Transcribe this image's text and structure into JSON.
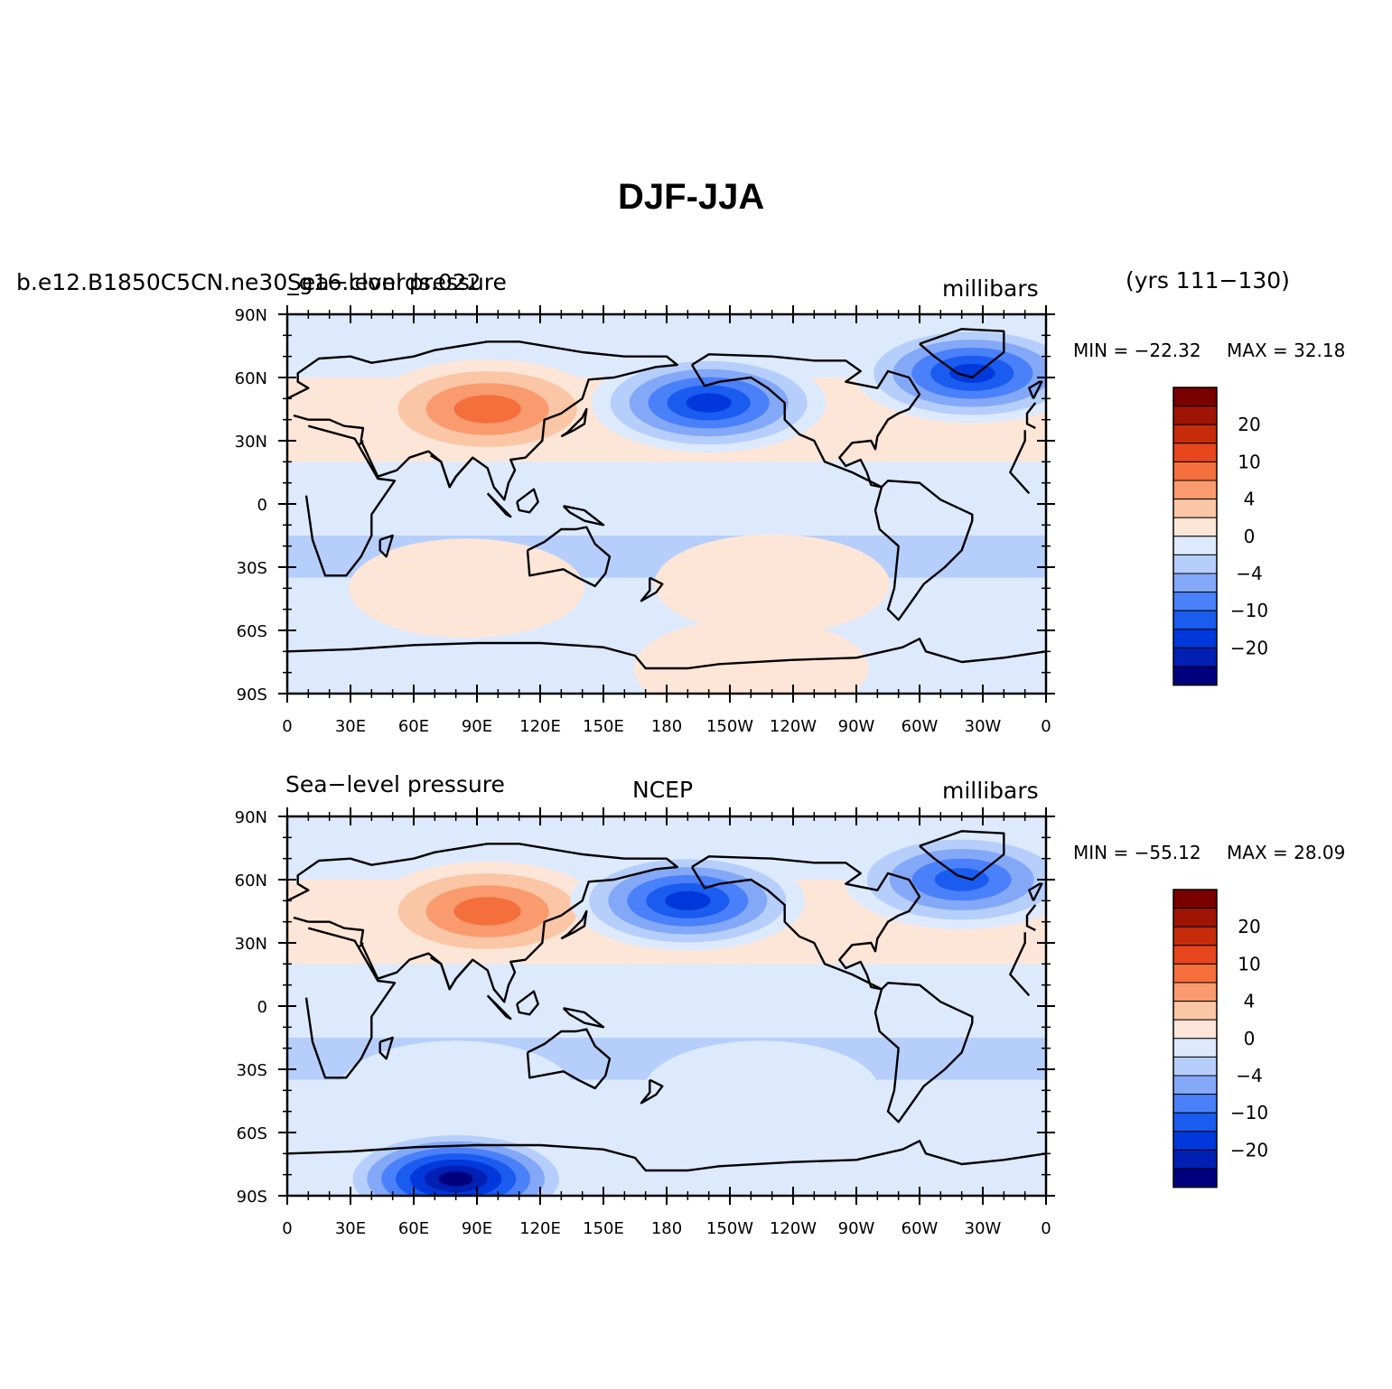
{
  "figure": {
    "title": "DJF-JJA",
    "years_label": "(yrs 111−130)"
  },
  "panels": [
    {
      "case_label": "b.e12.B1850C5CN.ne30_g16.clonrds.022",
      "variable_label": "Sea−level pressure",
      "center_label": "",
      "units_label": "millibars",
      "min_label": "MIN = −22.32",
      "max_label": "MAX =  32.18",
      "regions": [
        {
          "name": "siberian-high",
          "lon": 95,
          "lat": 45,
          "level": 11
        },
        {
          "name": "aleutian-low",
          "lon": 200,
          "lat": 48,
          "level": 2
        },
        {
          "name": "icelandic-low",
          "lon": 325,
          "lat": 62,
          "level": 2
        },
        {
          "name": "southern-indian-high",
          "lon": 85,
          "lat": -40,
          "level": 8
        },
        {
          "name": "south-pacific-high",
          "lon": 230,
          "lat": -38,
          "level": 8
        },
        {
          "name": "antarctic-coast",
          "lon": 220,
          "lat": -78,
          "level": 8
        }
      ]
    },
    {
      "case_label": "",
      "variable_label": "Sea−level pressure",
      "center_label": "NCEP",
      "units_label": "millibars",
      "min_label": "MIN = −55.12",
      "max_label": "MAX =  28.09",
      "regions": [
        {
          "name": "siberian-high",
          "lon": 95,
          "lat": 45,
          "level": 11
        },
        {
          "name": "aleutian-low",
          "lon": 190,
          "lat": 50,
          "level": 2
        },
        {
          "name": "icelandic-low",
          "lon": 320,
          "lat": 60,
          "level": 3
        },
        {
          "name": "southern-indian-high",
          "lon": 80,
          "lat": -40,
          "level": 7
        },
        {
          "name": "south-pacific-high",
          "lon": 225,
          "lat": -40,
          "level": 7
        },
        {
          "name": "antarctic-interior",
          "lon": 80,
          "lat": -82,
          "level": 0
        }
      ]
    }
  ],
  "colorbar": {
    "colors": [
      "#00007f",
      "#0020b4",
      "#0038dc",
      "#1a5cf0",
      "#4a80fa",
      "#84a8f8",
      "#b6cefb",
      "#dde9fc",
      "#fde6d8",
      "#fbc6a6",
      "#f99b6f",
      "#f46f3c",
      "#e8461c",
      "#c62c0a",
      "#a01404",
      "#7a0000"
    ],
    "tick_labels": [
      "20",
      "10",
      "4",
      "0",
      "−4",
      "−10",
      "−20"
    ]
  },
  "axes": {
    "lat_labels": [
      "90N",
      "60N",
      "30N",
      "0",
      "30S",
      "60S",
      "90S"
    ],
    "lon_labels": [
      "0",
      "30E",
      "60E",
      "90E",
      "120E",
      "150E",
      "180",
      "150W",
      "120W",
      "90W",
      "60W",
      "30W",
      "0"
    ]
  }
}
